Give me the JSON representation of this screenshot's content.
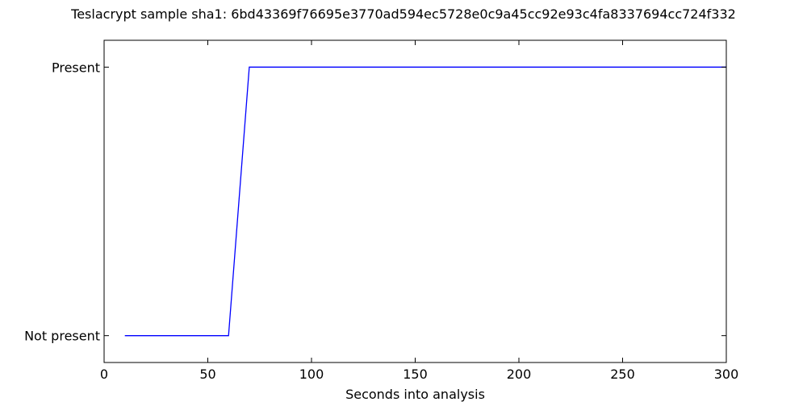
{
  "chart_data": {
    "type": "line",
    "title": "Teslacrypt sample sha1: 6bd43369f76695e3770ad594ec5728e0c9a45cc92e93c4fa8337694cc724f332",
    "xlabel": "Seconds into analysis",
    "ylabel": "",
    "xlim": [
      0,
      300
    ],
    "ylim": [
      -0.1,
      1.1
    ],
    "x_ticks": [
      0,
      50,
      100,
      150,
      200,
      250,
      300
    ],
    "x_tick_labels": [
      "0",
      "50",
      "100",
      "150",
      "200",
      "250",
      "300"
    ],
    "y_ticks": [
      0,
      1
    ],
    "y_tick_labels": [
      "Not present",
      "Present"
    ],
    "grid": false,
    "legend": "none",
    "series": [
      {
        "color": "#0000ff",
        "x": [
          10,
          20,
          30,
          40,
          50,
          60,
          70,
          80,
          90,
          100,
          110,
          120,
          130,
          140,
          150,
          160,
          170,
          180,
          190,
          200,
          210,
          220,
          230,
          240,
          250,
          260,
          270,
          280,
          290,
          300
        ],
        "y": [
          0,
          0,
          0,
          0,
          0,
          0,
          1,
          1,
          1,
          1,
          1,
          1,
          1,
          1,
          1,
          1,
          1,
          1,
          1,
          1,
          1,
          1,
          1,
          1,
          1,
          1,
          1,
          1,
          1,
          1
        ]
      }
    ]
  }
}
